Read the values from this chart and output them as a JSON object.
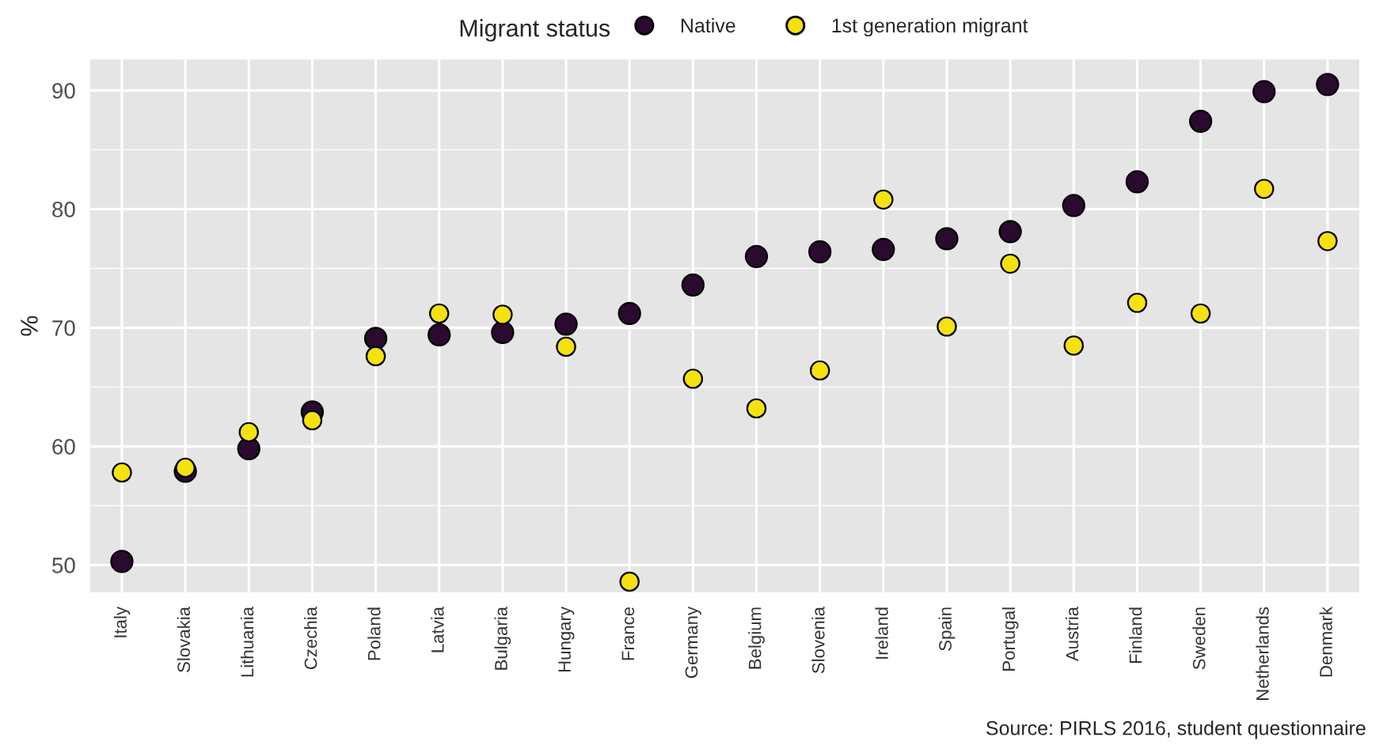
{
  "chart_data": {
    "type": "scatter",
    "categories": [
      "Italy",
      "Slovakia",
      "Lithuania",
      "Czechia",
      "Poland",
      "Latvia",
      "Bulgaria",
      "Hungary",
      "France",
      "Germany",
      "Belgium",
      "Slovenia",
      "Ireland",
      "Spain",
      "Portugal",
      "Austria",
      "Finland",
      "Sweden",
      "Netherlands",
      "Denmark"
    ],
    "series": [
      {
        "name": "Native",
        "color": "#2a0a2e",
        "values": [
          50.3,
          57.9,
          59.8,
          62.9,
          69.1,
          69.4,
          69.6,
          70.3,
          71.2,
          73.6,
          76.0,
          76.4,
          76.6,
          77.5,
          78.1,
          80.3,
          82.3,
          87.4,
          89.9,
          90.5
        ]
      },
      {
        "name": "1st generation migrant",
        "color": "#f5e10f",
        "values": [
          57.8,
          58.2,
          61.2,
          62.2,
          67.6,
          71.2,
          71.1,
          68.4,
          48.6,
          65.7,
          63.2,
          66.4,
          80.8,
          70.1,
          75.4,
          68.5,
          72.1,
          71.2,
          81.7,
          77.3
        ]
      }
    ],
    "ylabel": "%",
    "legend_title": "Migrant status",
    "legend": "top",
    "ylim": [
      47.7,
      92.6
    ],
    "yticks": [
      50,
      60,
      70,
      80,
      90
    ],
    "grid": true,
    "marker": "circle",
    "annotations": [
      "Source: PIRLS 2016, student questionnaire"
    ]
  }
}
